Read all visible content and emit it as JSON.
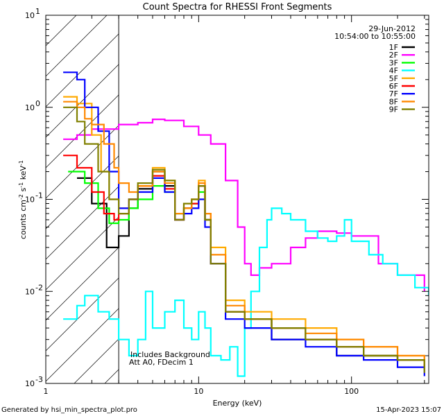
{
  "chart_data": {
    "type": "line",
    "title": "Count Spectra for RHESSI Front Segments",
    "xlabel": "Energy (keV)",
    "ylabel_parts": [
      "counts cm",
      "-2",
      " s",
      "-1",
      " keV",
      "-1"
    ],
    "xscale": "log",
    "yscale": "log",
    "xlim": [
      1,
      320
    ],
    "ylim": [
      0.001,
      10
    ],
    "x_ticks": [
      {
        "value": 1,
        "label": "1"
      },
      {
        "value": 10,
        "label": "10"
      },
      {
        "value": 100,
        "label": "100"
      }
    ],
    "y_ticks": [
      {
        "exp": -3,
        "label_base": "10",
        "label_exp": "-3"
      },
      {
        "exp": -2,
        "label_base": "10",
        "label_exp": "-2"
      },
      {
        "exp": -1,
        "label_base": "10",
        "label_exp": "-1"
      },
      {
        "exp": 0,
        "label_base": "10",
        "label_exp": "0"
      },
      {
        "exp": 1,
        "label_base": "10",
        "label_exp": "1"
      }
    ],
    "hatched_region": [
      1,
      3
    ],
    "date": "29-Jun-2012",
    "time_range": "10:54:00 to 10:55:00",
    "annotations": [
      "Includes Background",
      "Att A0, FDecim 1"
    ],
    "legend_position": "top-right",
    "series": [
      {
        "name": "1F",
        "color": "#000000",
        "points": [
          [
            1.6,
            0.17
          ],
          [
            2,
            0.09
          ],
          [
            2.5,
            0.03
          ],
          [
            3,
            0.04
          ],
          [
            3.5,
            0.08
          ],
          [
            4,
            0.13
          ],
          [
            5,
            0.2
          ],
          [
            6,
            0.14
          ],
          [
            7,
            0.06
          ],
          [
            8,
            0.08
          ],
          [
            9,
            0.09
          ],
          [
            10,
            0.14
          ],
          [
            11,
            0.06
          ],
          [
            12,
            0.02
          ],
          [
            15,
            0.006
          ],
          [
            20,
            0.005
          ],
          [
            30,
            0.003
          ],
          [
            50,
            0.003
          ],
          [
            80,
            0.002
          ],
          [
            120,
            0.002
          ],
          [
            200,
            0.0018
          ],
          [
            300,
            0.0014
          ]
        ]
      },
      {
        "name": "2F",
        "color": "#ff00ff",
        "points": [
          [
            1.3,
            0.45
          ],
          [
            1.6,
            0.5
          ],
          [
            2,
            0.58
          ],
          [
            3,
            0.65
          ],
          [
            4,
            0.68
          ],
          [
            5,
            0.74
          ],
          [
            6,
            0.72
          ],
          [
            8,
            0.62
          ],
          [
            10,
            0.5
          ],
          [
            12,
            0.4
          ],
          [
            15,
            0.16
          ],
          [
            18,
            0.05
          ],
          [
            20,
            0.02
          ],
          [
            22,
            0.015
          ],
          [
            25,
            0.018
          ],
          [
            30,
            0.02
          ],
          [
            40,
            0.03
          ],
          [
            50,
            0.038
          ],
          [
            60,
            0.045
          ],
          [
            80,
            0.043
          ],
          [
            100,
            0.04
          ],
          [
            150,
            0.02
          ],
          [
            200,
            0.015
          ],
          [
            300,
            0.01
          ]
        ]
      },
      {
        "name": "3F",
        "color": "#00ff00",
        "points": [
          [
            1.4,
            0.2
          ],
          [
            1.8,
            0.15
          ],
          [
            2.2,
            0.08
          ],
          [
            2.6,
            0.055
          ],
          [
            3,
            0.06
          ],
          [
            3.5,
            0.08
          ],
          [
            4,
            0.1
          ],
          [
            5,
            0.14
          ],
          [
            6,
            0.12
          ],
          [
            7,
            0.07
          ],
          [
            8,
            0.08
          ],
          [
            9,
            0.09
          ],
          [
            10,
            0.12
          ],
          [
            11,
            0.06
          ],
          [
            12,
            0.02
          ],
          [
            15,
            0.006
          ],
          [
            20,
            0.005
          ],
          [
            30,
            0.004
          ],
          [
            50,
            0.003
          ],
          [
            80,
            0.0025
          ],
          [
            120,
            0.002
          ],
          [
            200,
            0.0018
          ],
          [
            300,
            0.0014
          ]
        ]
      },
      {
        "name": "4F",
        "color": "#00ffff",
        "points": [
          [
            1.3,
            0.005
          ],
          [
            1.6,
            0.007
          ],
          [
            1.8,
            0.009
          ],
          [
            2.2,
            0.006
          ],
          [
            2.6,
            0.005
          ],
          [
            3,
            0.003
          ],
          [
            3.5,
            0.002
          ],
          [
            4,
            0.003
          ],
          [
            4.5,
            0.01
          ],
          [
            5,
            0.004
          ],
          [
            6,
            0.006
          ],
          [
            7,
            0.008
          ],
          [
            8,
            0.004
          ],
          [
            9,
            0.003
          ],
          [
            10,
            0.006
          ],
          [
            11,
            0.004
          ],
          [
            12,
            0.002
          ],
          [
            14,
            0.0018
          ],
          [
            16,
            0.0025
          ],
          [
            18,
            0.0012
          ],
          [
            20,
            0.004
          ],
          [
            22,
            0.01
          ],
          [
            25,
            0.03
          ],
          [
            28,
            0.06
          ],
          [
            30,
            0.08
          ],
          [
            35,
            0.07
          ],
          [
            40,
            0.06
          ],
          [
            50,
            0.045
          ],
          [
            60,
            0.038
          ],
          [
            70,
            0.035
          ],
          [
            80,
            0.04
          ],
          [
            90,
            0.06
          ],
          [
            100,
            0.035
          ],
          [
            130,
            0.025
          ],
          [
            160,
            0.02
          ],
          [
            200,
            0.015
          ],
          [
            260,
            0.011
          ],
          [
            320,
            0.009
          ]
        ]
      },
      {
        "name": "5F",
        "color": "#ffaa00",
        "points": [
          [
            1.3,
            1.3
          ],
          [
            1.6,
            1.1
          ],
          [
            2,
            0.5
          ],
          [
            2.3,
            0.2
          ],
          [
            2.6,
            0.1
          ],
          [
            3,
            0.08
          ],
          [
            3.5,
            0.1
          ],
          [
            4,
            0.14
          ],
          [
            5,
            0.22
          ],
          [
            6,
            0.16
          ],
          [
            7,
            0.06
          ],
          [
            8,
            0.09
          ],
          [
            9,
            0.1
          ],
          [
            10,
            0.16
          ],
          [
            11,
            0.07
          ],
          [
            12,
            0.03
          ],
          [
            15,
            0.008
          ],
          [
            20,
            0.006
          ],
          [
            30,
            0.005
          ],
          [
            50,
            0.004
          ],
          [
            80,
            0.003
          ],
          [
            120,
            0.0025
          ],
          [
            200,
            0.002
          ],
          [
            300,
            0.0016
          ]
        ]
      },
      {
        "name": "6F",
        "color": "#ff0000",
        "points": [
          [
            1.3,
            0.3
          ],
          [
            1.6,
            0.22
          ],
          [
            2,
            0.12
          ],
          [
            2.4,
            0.07
          ],
          [
            2.8,
            0.06
          ],
          [
            3,
            0.07
          ],
          [
            3.5,
            0.1
          ],
          [
            4,
            0.14
          ],
          [
            5,
            0.18
          ],
          [
            6,
            0.13
          ],
          [
            7,
            0.06
          ],
          [
            8,
            0.08
          ],
          [
            9,
            0.09
          ],
          [
            10,
            0.14
          ],
          [
            11,
            0.06
          ],
          [
            12,
            0.02
          ],
          [
            15,
            0.006
          ],
          [
            20,
            0.005
          ],
          [
            30,
            0.004
          ],
          [
            50,
            0.003
          ],
          [
            80,
            0.0025
          ],
          [
            120,
            0.002
          ],
          [
            200,
            0.0018
          ],
          [
            300,
            0.0014
          ]
        ]
      },
      {
        "name": "7F",
        "color": "#0000ff",
        "points": [
          [
            1.3,
            2.4
          ],
          [
            1.6,
            2
          ],
          [
            1.8,
            1
          ],
          [
            2.2,
            0.55
          ],
          [
            2.6,
            0.2
          ],
          [
            3,
            0.08
          ],
          [
            3.5,
            0.1
          ],
          [
            4,
            0.12
          ],
          [
            5,
            0.17
          ],
          [
            6,
            0.12
          ],
          [
            7,
            0.06
          ],
          [
            8,
            0.07
          ],
          [
            9,
            0.08
          ],
          [
            10,
            0.1
          ],
          [
            11,
            0.05
          ],
          [
            12,
            0.02
          ],
          [
            15,
            0.005
          ],
          [
            20,
            0.004
          ],
          [
            30,
            0.003
          ],
          [
            50,
            0.0025
          ],
          [
            80,
            0.002
          ],
          [
            120,
            0.0018
          ],
          [
            200,
            0.0015
          ],
          [
            300,
            0.0012
          ]
        ]
      },
      {
        "name": "8F",
        "color": "#ff8800",
        "points": [
          [
            1.3,
            1.15
          ],
          [
            1.6,
            1
          ],
          [
            1.8,
            0.75
          ],
          [
            2,
            0.65
          ],
          [
            2.4,
            0.4
          ],
          [
            2.8,
            0.22
          ],
          [
            3,
            0.15
          ],
          [
            3.5,
            0.12
          ],
          [
            4,
            0.14
          ],
          [
            5,
            0.2
          ],
          [
            6,
            0.15
          ],
          [
            7,
            0.07
          ],
          [
            8,
            0.08
          ],
          [
            9,
            0.1
          ],
          [
            10,
            0.15
          ],
          [
            11,
            0.07
          ],
          [
            12,
            0.025
          ],
          [
            15,
            0.007
          ],
          [
            20,
            0.005
          ],
          [
            30,
            0.004
          ],
          [
            50,
            0.0035
          ],
          [
            80,
            0.003
          ],
          [
            120,
            0.0025
          ],
          [
            200,
            0.002
          ],
          [
            300,
            0.0016
          ]
        ]
      },
      {
        "name": "9F",
        "color": "#808000",
        "points": [
          [
            1.3,
            1.0
          ],
          [
            1.6,
            0.7
          ],
          [
            1.8,
            0.4
          ],
          [
            2.2,
            0.2
          ],
          [
            2.6,
            0.1
          ],
          [
            3,
            0.07
          ],
          [
            3.5,
            0.1
          ],
          [
            4,
            0.15
          ],
          [
            5,
            0.21
          ],
          [
            6,
            0.16
          ],
          [
            7,
            0.06
          ],
          [
            8,
            0.09
          ],
          [
            9,
            0.1
          ],
          [
            10,
            0.14
          ],
          [
            11,
            0.06
          ],
          [
            12,
            0.02
          ],
          [
            15,
            0.006
          ],
          [
            20,
            0.005
          ],
          [
            30,
            0.004
          ],
          [
            50,
            0.003
          ],
          [
            80,
            0.0025
          ],
          [
            120,
            0.002
          ],
          [
            200,
            0.0018
          ],
          [
            300,
            0.0013
          ]
        ]
      }
    ]
  },
  "footer": {
    "left": "Generated by hsi_min_spectra_plot.pro",
    "right": "15-Apr-2023 15:07"
  }
}
